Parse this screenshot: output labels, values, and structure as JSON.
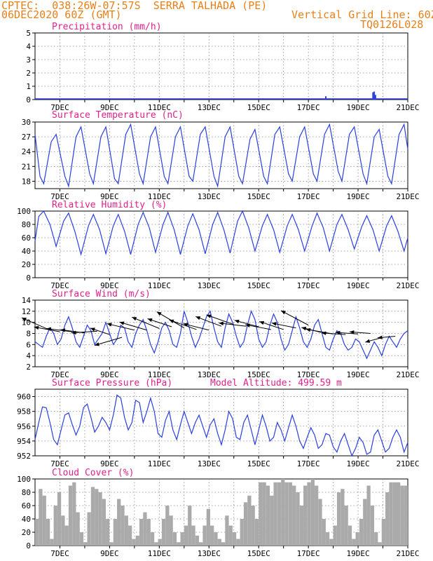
{
  "header": {
    "line1_left": "CPTEC:  038:26W-07:57S  SERRA TALHADA (PE)",
    "line2_left": "06DEC2020 60Z (GMT)",
    "line2_right": "Vertical Grid Line: 60Z",
    "line3_right": "TQ0126L028"
  },
  "colors": {
    "header": "#e8801a",
    "title": "#e0218a",
    "line": "#2a3fe0",
    "bar": "#aaaaaa",
    "arrow": "#000000"
  },
  "x_axis": {
    "ticks": [
      "7DEC",
      "9DEC",
      "11DEC",
      "13DEC",
      "15DEC",
      "17DEC",
      "19DEC",
      "21DEC"
    ],
    "range_days": [
      6.0,
      21.0
    ]
  },
  "chart_data": [
    {
      "type": "bar",
      "title": "Precipitation (mm/h)",
      "ylim": [
        0,
        5
      ],
      "yticks": [
        "0",
        "1",
        "2",
        "3",
        "4",
        "5"
      ],
      "grid": true,
      "x": [
        17.7,
        19.6,
        19.65,
        19.7
      ],
      "values": [
        0.25,
        0.55,
        0.6,
        0.35
      ]
    },
    {
      "type": "line",
      "title": "Surface Temperature (nC)",
      "ylim": [
        16.5,
        30
      ],
      "yticks": [
        "18",
        "21",
        "24",
        "27",
        "30"
      ],
      "grid": true,
      "x": [
        6.0,
        6.2,
        6.35,
        6.65,
        6.85,
        7.2,
        7.35,
        7.65,
        7.85,
        8.2,
        8.35,
        8.65,
        8.85,
        9.2,
        9.35,
        9.65,
        9.85,
        10.2,
        10.35,
        10.65,
        10.85,
        11.2,
        11.35,
        11.65,
        11.85,
        12.2,
        12.35,
        12.65,
        12.85,
        13.2,
        13.35,
        13.65,
        13.85,
        14.2,
        14.35,
        14.65,
        14.85,
        15.2,
        15.35,
        15.65,
        15.85,
        16.2,
        16.35,
        16.65,
        16.85,
        17.2,
        17.35,
        17.65,
        17.85,
        18.2,
        18.35,
        18.65,
        18.85,
        19.2,
        19.35,
        19.65,
        19.85,
        20.2,
        20.35,
        20.65,
        20.85,
        21.0
      ],
      "series": [
        {
          "values": [
            27.5,
            19.0,
            17.5,
            26.0,
            27.5,
            19.0,
            17.0,
            27.0,
            29.0,
            19.5,
            17.5,
            27.0,
            29.0,
            18.5,
            17.5,
            27.5,
            29.5,
            19.5,
            17.5,
            27.0,
            29.0,
            19.0,
            17.5,
            27.0,
            29.0,
            19.0,
            18.0,
            27.5,
            29.0,
            19.0,
            17.0,
            27.0,
            29.0,
            19.0,
            17.5,
            26.5,
            28.5,
            19.0,
            17.5,
            27.5,
            29.0,
            19.5,
            18.0,
            27.0,
            29.0,
            19.5,
            18.0,
            27.5,
            29.5,
            20.0,
            18.0,
            27.5,
            29.0,
            19.5,
            17.5,
            27.0,
            28.5,
            19.0,
            17.5,
            27.5,
            29.5,
            24.5
          ]
        }
      ]
    },
    {
      "type": "line",
      "title": "Relative Humidity (%)",
      "ylim": [
        0,
        100
      ],
      "yticks": [
        "0",
        "20",
        "40",
        "60",
        "80",
        "100"
      ],
      "grid": true,
      "x": [
        6.0,
        6.15,
        6.35,
        6.6,
        6.85,
        7.15,
        7.35,
        7.6,
        7.85,
        8.15,
        8.35,
        8.6,
        8.85,
        9.15,
        9.35,
        9.6,
        9.85,
        10.15,
        10.35,
        10.6,
        10.85,
        11.15,
        11.35,
        11.6,
        11.85,
        12.15,
        12.35,
        12.6,
        12.85,
        13.15,
        13.35,
        13.6,
        13.85,
        14.15,
        14.35,
        14.6,
        14.85,
        15.15,
        15.35,
        15.6,
        15.85,
        16.15,
        16.35,
        16.6,
        16.85,
        17.15,
        17.35,
        17.6,
        17.85,
        18.15,
        18.35,
        18.6,
        18.85,
        19.15,
        19.35,
        19.6,
        19.85,
        20.15,
        20.35,
        20.6,
        20.85,
        21.0
      ],
      "series": [
        {
          "values": [
            55,
            92,
            100,
            80,
            47,
            85,
            97,
            70,
            35,
            78,
            95,
            72,
            36,
            78,
            95,
            70,
            35,
            80,
            98,
            75,
            38,
            80,
            98,
            72,
            35,
            78,
            96,
            72,
            36,
            80,
            98,
            72,
            37,
            85,
            100,
            75,
            40,
            78,
            95,
            72,
            38,
            78,
            95,
            72,
            40,
            78,
            97,
            75,
            40,
            80,
            95,
            72,
            43,
            77,
            93,
            72,
            40,
            78,
            93,
            70,
            40,
            60
          ]
        }
      ]
    },
    {
      "type": "line",
      "title": "Surface Wind (m/s)",
      "ylim": [
        2,
        14
      ],
      "yticks": [
        "2",
        "4",
        "6",
        "8",
        "10",
        "12",
        "14"
      ],
      "grid": true,
      "x": [
        6.0,
        6.15,
        6.3,
        6.45,
        6.6,
        6.75,
        6.9,
        7.05,
        7.2,
        7.35,
        7.5,
        7.65,
        7.8,
        7.95,
        8.1,
        8.25,
        8.4,
        8.55,
        8.7,
        8.85,
        9.0,
        9.15,
        9.3,
        9.45,
        9.6,
        9.75,
        9.9,
        10.05,
        10.2,
        10.35,
        10.5,
        10.65,
        10.8,
        10.95,
        11.1,
        11.25,
        11.4,
        11.55,
        11.7,
        11.85,
        12.0,
        12.15,
        12.3,
        12.45,
        12.6,
        12.75,
        12.9,
        13.05,
        13.2,
        13.35,
        13.5,
        13.65,
        13.8,
        13.95,
        14.1,
        14.25,
        14.4,
        14.55,
        14.7,
        14.85,
        15.0,
        15.15,
        15.3,
        15.45,
        15.6,
        15.75,
        15.9,
        16.05,
        16.2,
        16.35,
        16.5,
        16.65,
        16.8,
        16.95,
        17.1,
        17.25,
        17.4,
        17.55,
        17.7,
        17.85,
        18.0,
        18.15,
        18.3,
        18.45,
        18.6,
        18.75,
        18.9,
        19.05,
        19.2,
        19.35,
        19.5,
        19.65,
        19.8,
        19.95,
        20.1,
        20.25,
        20.4,
        20.55,
        20.7,
        20.85,
        21.0
      ],
      "series": [
        {
          "values": [
            6.5,
            6.0,
            5.5,
            7.5,
            9.0,
            8.0,
            6.0,
            7.0,
            9.5,
            11.0,
            9.0,
            6.5,
            5.5,
            7.5,
            9.5,
            8.5,
            6.0,
            7.0,
            8.0,
            10.0,
            8.0,
            6.0,
            7.0,
            9.5,
            9.0,
            6.5,
            5.5,
            8.0,
            9.5,
            10.5,
            8.5,
            6.0,
            4.5,
            6.5,
            9.0,
            10.0,
            8.5,
            6.0,
            5.5,
            8.0,
            12.0,
            10.0,
            7.5,
            5.5,
            7.0,
            9.0,
            11.0,
            12.0,
            9.0,
            6.5,
            5.5,
            9.0,
            11.5,
            10.0,
            7.5,
            5.5,
            6.5,
            9.5,
            12.0,
            10.5,
            7.0,
            5.5,
            6.5,
            9.5,
            11.5,
            10.0,
            7.0,
            5.0,
            6.0,
            8.5,
            11.0,
            9.0,
            6.5,
            5.5,
            7.0,
            9.5,
            10.5,
            8.0,
            5.5,
            5.0,
            7.0,
            8.5,
            8.0,
            6.0,
            5.0,
            5.5,
            7.0,
            6.5,
            5.0,
            3.5,
            5.0,
            6.5,
            5.5,
            4.0,
            6.0,
            7.5,
            6.5,
            5.5,
            7.0,
            8.0,
            8.5
          ]
        }
      ],
      "wind_vectors": [
        {
          "x": 6.5,
          "y": 8.8,
          "u": -0.8,
          "v": 0.35
        },
        {
          "x": 7.0,
          "y": 8.3,
          "u": -0.8,
          "v": 0.15
        },
        {
          "x": 7.5,
          "y": 8.3,
          "u": -0.8,
          "v": 0.1
        },
        {
          "x": 8.0,
          "y": 8.1,
          "u": -0.75,
          "v": 0.1
        },
        {
          "x": 8.5,
          "y": 8.4,
          "u": -0.8,
          "v": -0.05
        },
        {
          "x": 9.0,
          "y": 7.8,
          "u": -0.6,
          "v": 0.2
        },
        {
          "x": 9.5,
          "y": 7.3,
          "u": -0.85,
          "v": -0.25
        },
        {
          "x": 10.0,
          "y": 8.6,
          "u": -0.85,
          "v": 0.2
        },
        {
          "x": 10.5,
          "y": 8.6,
          "u": -0.85,
          "v": 0.25
        },
        {
          "x": 11.0,
          "y": 8.9,
          "u": -0.85,
          "v": 0.35
        },
        {
          "x": 11.5,
          "y": 9.2,
          "u": -0.75,
          "v": 0.25
        },
        {
          "x": 12.0,
          "y": 9.0,
          "u": -0.85,
          "v": 0.5
        },
        {
          "x": 12.5,
          "y": 8.7,
          "u": -0.85,
          "v": 0.3
        },
        {
          "x": 13.0,
          "y": 8.6,
          "u": -0.8,
          "v": 0.2
        },
        {
          "x": 13.5,
          "y": 9.3,
          "u": -0.8,
          "v": 0.3
        },
        {
          "x": 14.0,
          "y": 9.6,
          "u": -0.85,
          "v": 0.3
        },
        {
          "x": 14.5,
          "y": 9.3,
          "u": -0.85,
          "v": 0.1
        },
        {
          "x": 15.0,
          "y": 9.2,
          "u": -0.75,
          "v": 0.2
        },
        {
          "x": 15.5,
          "y": 8.7,
          "u": -0.8,
          "v": 0.15
        },
        {
          "x": 16.0,
          "y": 8.7,
          "u": -0.75,
          "v": 0.25
        },
        {
          "x": 16.5,
          "y": 9.0,
          "u": -0.75,
          "v": 0.15
        },
        {
          "x": 17.0,
          "y": 9.5,
          "u": -0.85,
          "v": 0.45
        },
        {
          "x": 17.5,
          "y": 8.2,
          "u": -0.6,
          "v": 0.15
        },
        {
          "x": 18.0,
          "y": 7.9,
          "u": -0.85,
          "v": 0.15
        },
        {
          "x": 18.5,
          "y": 7.8,
          "u": -0.75,
          "v": 0.05
        },
        {
          "x": 19.0,
          "y": 7.9,
          "u": -0.7,
          "v": 0.05
        },
        {
          "x": 19.5,
          "y": 8.0,
          "u": -0.65,
          "v": 0.05
        },
        {
          "x": 20.0,
          "y": 7.3,
          "u": -0.55,
          "v": -0.15
        },
        {
          "x": 20.5,
          "y": 7.5,
          "u": -0.55,
          "v": -0.05
        }
      ]
    },
    {
      "type": "line",
      "title": "Surface Pressure (hPa)",
      "annotation": "Model Altitude: 499.59 m",
      "ylim": [
        952,
        961
      ],
      "yticks": [
        "952",
        "954",
        "956",
        "958",
        "960"
      ],
      "grid": true,
      "x": [
        6.0,
        6.15,
        6.3,
        6.45,
        6.6,
        6.75,
        6.9,
        7.05,
        7.2,
        7.35,
        7.5,
        7.65,
        7.8,
        7.95,
        8.1,
        8.25,
        8.4,
        8.55,
        8.7,
        8.85,
        9.0,
        9.15,
        9.3,
        9.45,
        9.6,
        9.75,
        9.9,
        10.05,
        10.2,
        10.35,
        10.5,
        10.65,
        10.8,
        10.95,
        11.1,
        11.25,
        11.4,
        11.55,
        11.7,
        11.85,
        12.0,
        12.15,
        12.3,
        12.45,
        12.6,
        12.75,
        12.9,
        13.05,
        13.2,
        13.35,
        13.5,
        13.65,
        13.8,
        13.95,
        14.1,
        14.25,
        14.4,
        14.55,
        14.7,
        14.85,
        15.0,
        15.15,
        15.3,
        15.45,
        15.6,
        15.75,
        15.9,
        16.05,
        16.2,
        16.35,
        16.5,
        16.65,
        16.8,
        16.95,
        17.1,
        17.25,
        17.4,
        17.55,
        17.7,
        17.85,
        18.0,
        18.15,
        18.3,
        18.45,
        18.6,
        18.75,
        18.9,
        19.05,
        19.2,
        19.35,
        19.5,
        19.65,
        19.8,
        19.95,
        20.1,
        20.25,
        20.4,
        20.55,
        20.7,
        20.85,
        21.0
      ],
      "series": [
        {
          "values": [
            954.2,
            956.5,
            958.6,
            958.5,
            956.5,
            954.2,
            953.5,
            955.5,
            957.5,
            957.8,
            956.2,
            954.8,
            956.0,
            958.5,
            959.0,
            957.2,
            955.2,
            956.0,
            957.2,
            956.5,
            955.5,
            957.5,
            960.2,
            959.8,
            957.2,
            955.5,
            956.5,
            959.5,
            959.2,
            956.5,
            958.0,
            959.8,
            958.0,
            955.0,
            954.5,
            956.8,
            958.0,
            955.5,
            954.2,
            956.2,
            958.0,
            956.5,
            955.0,
            956.5,
            957.5,
            956.0,
            954.5,
            956.2,
            957.0,
            955.0,
            953.5,
            955.5,
            958.0,
            957.0,
            954.5,
            954.2,
            956.5,
            957.5,
            955.5,
            953.5,
            955.5,
            957.5,
            956.0,
            954.0,
            954.5,
            956.5,
            955.5,
            954.0,
            955.8,
            957.5,
            956.0,
            954.0,
            953.0,
            954.5,
            955.8,
            954.8,
            953.0,
            953.5,
            955.0,
            954.8,
            953.2,
            952.5,
            954.0,
            955.0,
            953.5,
            952.0,
            953.0,
            954.5,
            953.8,
            952.2,
            952.5,
            954.8,
            955.5,
            954.0,
            952.5,
            953.0,
            954.5,
            955.5,
            954.5,
            952.5,
            953.8
          ]
        }
      ]
    },
    {
      "type": "area",
      "title": "Cloud Cover (%)",
      "ylim": [
        0,
        100
      ],
      "yticks": [
        "0",
        "20",
        "40",
        "60",
        "80",
        "100"
      ],
      "grid": true,
      "x": [
        6.0,
        6.15,
        6.3,
        6.45,
        6.6,
        6.75,
        6.9,
        7.05,
        7.2,
        7.35,
        7.5,
        7.65,
        7.8,
        7.95,
        8.1,
        8.25,
        8.4,
        8.55,
        8.7,
        8.85,
        9.0,
        9.15,
        9.3,
        9.45,
        9.6,
        9.75,
        9.9,
        10.05,
        10.2,
        10.35,
        10.5,
        10.65,
        10.8,
        10.95,
        11.1,
        11.25,
        11.4,
        11.55,
        11.7,
        11.85,
        12.0,
        12.15,
        12.3,
        12.45,
        12.6,
        12.75,
        12.9,
        13.05,
        13.2,
        13.35,
        13.5,
        13.65,
        13.8,
        13.95,
        14.1,
        14.25,
        14.4,
        14.55,
        14.7,
        14.85,
        15.0,
        15.15,
        15.3,
        15.45,
        15.6,
        15.75,
        15.9,
        16.05,
        16.2,
        16.35,
        16.5,
        16.65,
        16.8,
        16.95,
        17.1,
        17.25,
        17.4,
        17.55,
        17.7,
        17.85,
        18.0,
        18.15,
        18.3,
        18.45,
        18.6,
        18.75,
        18.9,
        19.05,
        19.2,
        19.35,
        19.5,
        19.65,
        19.8,
        19.95,
        20.1,
        20.25,
        20.4,
        20.55,
        20.7,
        20.85,
        21.0
      ],
      "series": [
        {
          "values": [
            40,
            85,
            75,
            40,
            10,
            60,
            80,
            45,
            30,
            90,
            95,
            50,
            20,
            5,
            50,
            88,
            85,
            80,
            70,
            40,
            5,
            40,
            70,
            60,
            45,
            30,
            10,
            15,
            40,
            50,
            40,
            20,
            5,
            10,
            40,
            60,
            45,
            20,
            5,
            20,
            30,
            60,
            30,
            15,
            5,
            30,
            55,
            30,
            20,
            10,
            5,
            45,
            30,
            20,
            10,
            40,
            65,
            75,
            60,
            40,
            95,
            95,
            90,
            75,
            95,
            95,
            100,
            95,
            95,
            90,
            80,
            60,
            90,
            95,
            100,
            90,
            70,
            40,
            20,
            10,
            30,
            80,
            85,
            60,
            30,
            10,
            20,
            40,
            70,
            90,
            60,
            20,
            5,
            40,
            80,
            95,
            95,
            95,
            90,
            90,
            85
          ]
        }
      ]
    }
  ]
}
